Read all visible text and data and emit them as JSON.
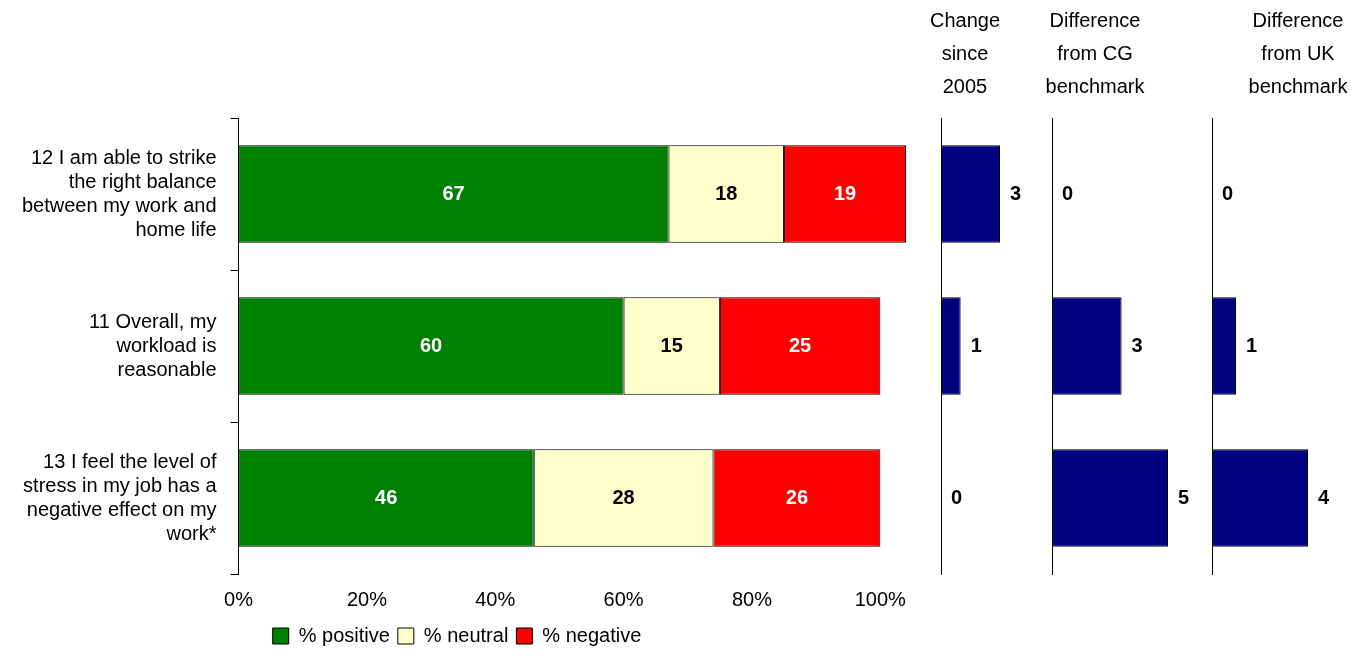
{
  "chart_data": [
    {
      "type": "bar",
      "orientation": "horizontal",
      "stacked": true,
      "data_labels": true,
      "categories": [
        "12 I am able to strike the right balance between my work and home life",
        "11 Overall, my workload is reasonable",
        "13 I feel the level of stress in my job has a negative effect on my work*"
      ],
      "series": [
        {
          "name": "% positive",
          "color": "#008000",
          "values": [
            67,
            60,
            46
          ]
        },
        {
          "name": "% neutral",
          "color": "#ffffcc",
          "values": [
            18,
            15,
            28
          ]
        },
        {
          "name": "% negative",
          "color": "#ff0000",
          "values": [
            19,
            25,
            26
          ]
        }
      ],
      "xlim": [
        0,
        104
      ],
      "xticks": [
        {
          "value": 0,
          "label": "0%"
        },
        {
          "value": 20,
          "label": "20%"
        },
        {
          "value": 40,
          "label": "40%"
        },
        {
          "value": 60,
          "label": "60%"
        },
        {
          "value": 80,
          "label": "80%"
        },
        {
          "value": 100,
          "label": "100%"
        }
      ],
      "legend": "bottom"
    },
    {
      "type": "bar",
      "orientation": "horizontal",
      "title": "Change since 2005",
      "categories": [
        null,
        null,
        null
      ],
      "data_labels": true,
      "xlim": [
        0,
        3
      ],
      "series": [
        {
          "color": "#000080",
          "values": [
            3,
            1,
            0
          ]
        }
      ]
    },
    {
      "type": "bar",
      "orientation": "horizontal",
      "title": "Difference from CG benchmark",
      "categories": [
        null,
        null,
        null
      ],
      "data_labels": true,
      "xlim": [
        0,
        5
      ],
      "series": [
        {
          "color": "#000080",
          "values": [
            0,
            3,
            5
          ]
        }
      ]
    },
    {
      "type": "bar",
      "orientation": "horizontal",
      "title": "Difference from UK benchmark",
      "categories": [
        null,
        null,
        null
      ],
      "data_labels": true,
      "xlim": [
        0,
        4
      ],
      "series": [
        {
          "color": "#000080",
          "values": [
            0,
            1,
            4
          ]
        }
      ]
    }
  ]
}
